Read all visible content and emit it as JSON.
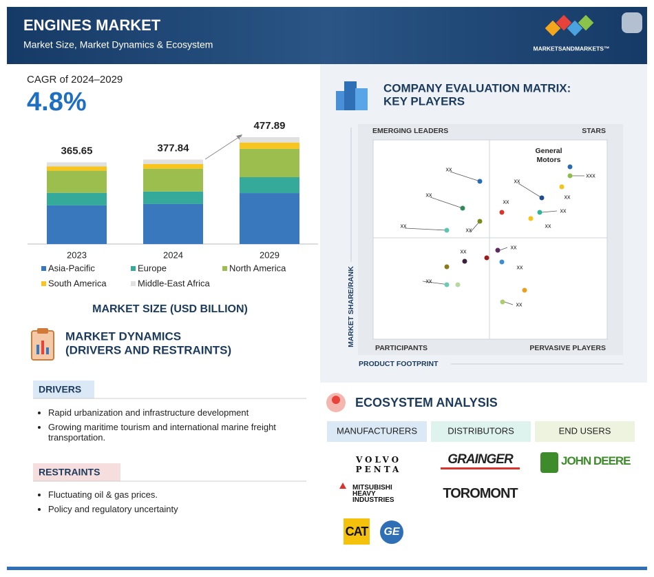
{
  "header": {
    "title": "ENGINES MARKET",
    "subtitle": "Market Size, Market Dynamics & Ecosystem",
    "brand": "MARKETSANDMARKETS™"
  },
  "cagr": {
    "label": "CAGR of 2024–2029",
    "value": "4.8%"
  },
  "chart_data": {
    "type": "bar",
    "stacked": true,
    "title": "MARKET SIZE (USD BILLION)",
    "categories": [
      "2023",
      "2024",
      "2029"
    ],
    "totals": [
      365.65,
      377.84,
      477.89
    ],
    "series": [
      {
        "name": "Asia-Pacific",
        "color": "#3a78bd",
        "values": [
          173,
          179,
          228
        ]
      },
      {
        "name": "Europe",
        "color": "#35a99a",
        "values": [
          56,
          56,
          71
        ]
      },
      {
        "name": "North America",
        "color": "#9cbe4f",
        "values": [
          99,
          102,
          127
        ]
      },
      {
        "name": "South America",
        "color": "#f7c51e",
        "values": [
          19,
          21,
          28
        ]
      },
      {
        "name": "Middle-East Africa",
        "color": "#e0e0e0",
        "values": [
          18.65,
          19.84,
          23.89
        ]
      }
    ]
  },
  "matrix": {
    "title_lines": [
      "COMPANY EVALUATION MATRIX:",
      "KEY PLAYERS"
    ],
    "quadrants": {
      "top_left": "EMERGING LEADERS",
      "top_right": "STARS",
      "bottom_left": "PARTICIPANTS",
      "bottom_right": "PERVASIVE PLAYERS"
    },
    "y_label": "MARKET SHARE/RANK",
    "x_label": "PRODUCT FOOTPRINT",
    "highlight": "General\nMotors",
    "point_labels": [
      "xx",
      "xxx",
      "xx",
      "xx",
      "xx",
      "xx",
      "xx",
      "xx",
      "xx",
      "xx",
      "xx",
      "xx",
      "xx",
      "xx",
      "xx"
    ]
  },
  "dynamics": {
    "title_lines": [
      "MARKET DYNAMICS",
      "(DRIVERS AND RESTRAINTS)"
    ],
    "drivers": {
      "heading": "DRIVERS",
      "items": [
        "Rapid urbanization and infrastructure development",
        "Growing maritime tourism and international marine freight transportation."
      ]
    },
    "restraints": {
      "heading": "RESTRAINTS",
      "items": [
        "Fluctuating oil & gas prices.",
        "Policy and regulatory uncertainty"
      ]
    }
  },
  "ecosystem": {
    "title": "ECOSYSTEM ANALYSIS",
    "columns": [
      {
        "heading": "MANUFACTURERS",
        "companies": [
          "VOLVO PENTA",
          "MITSUBISHI\nHEAVY INDUSTRIES",
          "CAT",
          "GE"
        ]
      },
      {
        "heading": "DISTRIBUTORS",
        "companies": [
          "GRAINGER",
          "TOROMONT"
        ]
      },
      {
        "heading": "END USERS",
        "companies": [
          "JOHN DEERE"
        ]
      }
    ]
  }
}
